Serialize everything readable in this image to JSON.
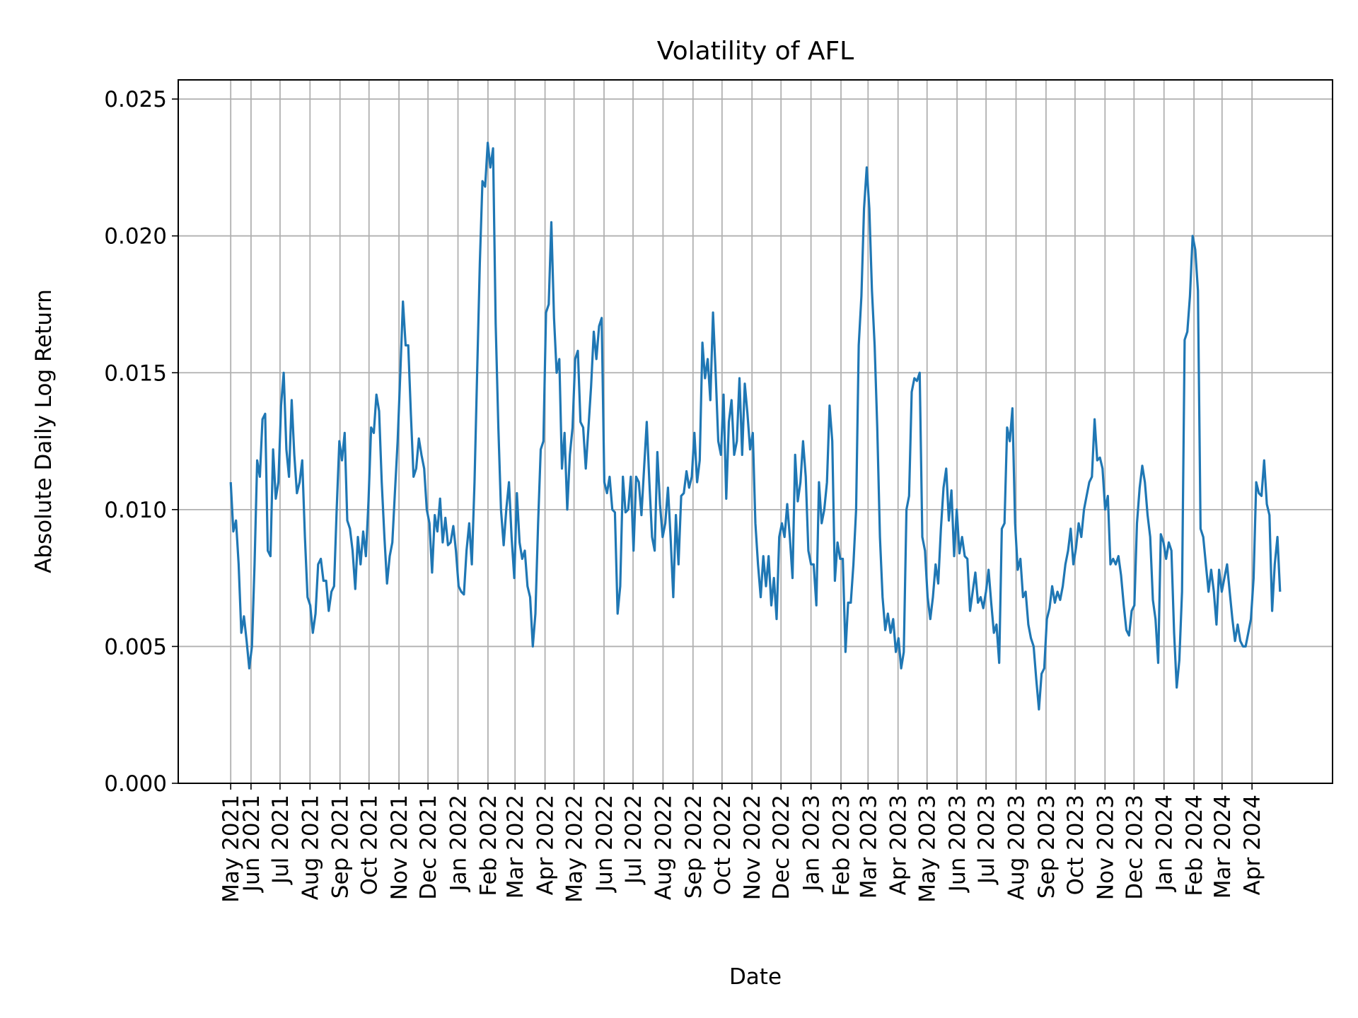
{
  "chart_data": {
    "type": "line",
    "title": "Volatility of AFL",
    "xlabel": "Date",
    "ylabel": "Absolute Daily Log Return",
    "ylim": [
      0,
      0.0257
    ],
    "grid": true,
    "line_color": "#1f77b4",
    "x_range": [
      "2021-05-11",
      "2024-04-30"
    ],
    "yticks": [
      "0.000",
      "0.005",
      "0.010",
      "0.015",
      "0.020",
      "0.025"
    ],
    "xticks": [
      {
        "date": "2021-05-11",
        "label": "May 2021"
      },
      {
        "date": "2021-06-01",
        "label": "Jun 2021"
      },
      {
        "date": "2021-07-01",
        "label": "Jul 2021"
      },
      {
        "date": "2021-08-01",
        "label": "Aug 2021"
      },
      {
        "date": "2021-09-01",
        "label": "Sep 2021"
      },
      {
        "date": "2021-10-01",
        "label": "Oct 2021"
      },
      {
        "date": "2021-11-01",
        "label": "Nov 2021"
      },
      {
        "date": "2021-12-01",
        "label": "Dec 2021"
      },
      {
        "date": "2022-01-01",
        "label": "Jan 2022"
      },
      {
        "date": "2022-02-01",
        "label": "Feb 2022"
      },
      {
        "date": "2022-03-01",
        "label": "Mar 2022"
      },
      {
        "date": "2022-04-01",
        "label": "Apr 2022"
      },
      {
        "date": "2022-05-01",
        "label": "May 2022"
      },
      {
        "date": "2022-06-01",
        "label": "Jun 2022"
      },
      {
        "date": "2022-07-01",
        "label": "Jul 2022"
      },
      {
        "date": "2022-08-01",
        "label": "Aug 2022"
      },
      {
        "date": "2022-09-01",
        "label": "Sep 2022"
      },
      {
        "date": "2022-10-01",
        "label": "Oct 2022"
      },
      {
        "date": "2022-11-01",
        "label": "Nov 2022"
      },
      {
        "date": "2022-12-01",
        "label": "Dec 2022"
      },
      {
        "date": "2023-01-01",
        "label": "Jan 2023"
      },
      {
        "date": "2023-02-01",
        "label": "Feb 2023"
      },
      {
        "date": "2023-03-01",
        "label": "Mar 2023"
      },
      {
        "date": "2023-04-01",
        "label": "Apr 2023"
      },
      {
        "date": "2023-05-01",
        "label": "May 2023"
      },
      {
        "date": "2023-06-01",
        "label": "Jun 2023"
      },
      {
        "date": "2023-07-01",
        "label": "Jul 2023"
      },
      {
        "date": "2023-08-01",
        "label": "Aug 2023"
      },
      {
        "date": "2023-09-01",
        "label": "Sep 2023"
      },
      {
        "date": "2023-10-01",
        "label": "Oct 2023"
      },
      {
        "date": "2023-11-01",
        "label": "Nov 2023"
      },
      {
        "date": "2023-12-01",
        "label": "Dec 2023"
      },
      {
        "date": "2024-01-01",
        "label": "Jan 2024"
      },
      {
        "date": "2024-02-01",
        "label": "Feb 2024"
      },
      {
        "date": "2024-03-01",
        "label": "Mar 2024"
      },
      {
        "date": "2024-04-01",
        "label": "Apr 2024"
      }
    ],
    "values": [
      0.011,
      0.0092,
      0.0096,
      0.008,
      0.0055,
      0.0061,
      0.0052,
      0.0042,
      0.005,
      0.008,
      0.0118,
      0.0112,
      0.0133,
      0.0135,
      0.0085,
      0.0083,
      0.0122,
      0.0104,
      0.011,
      0.0138,
      0.015,
      0.0122,
      0.0112,
      0.014,
      0.012,
      0.0106,
      0.011,
      0.0118,
      0.009,
      0.0068,
      0.0065,
      0.0055,
      0.0062,
      0.008,
      0.0082,
      0.0074,
      0.0074,
      0.0063,
      0.007,
      0.0072,
      0.01,
      0.0125,
      0.0118,
      0.0128,
      0.0096,
      0.0093,
      0.0085,
      0.0071,
      0.009,
      0.008,
      0.0092,
      0.0083,
      0.0103,
      0.013,
      0.0128,
      0.0142,
      0.0136,
      0.011,
      0.009,
      0.0073,
      0.0083,
      0.0088,
      0.0107,
      0.0125,
      0.015,
      0.0176,
      0.016,
      0.016,
      0.0135,
      0.0112,
      0.0115,
      0.0126,
      0.012,
      0.0115,
      0.01,
      0.0095,
      0.0077,
      0.0098,
      0.0092,
      0.0104,
      0.0088,
      0.0097,
      0.0087,
      0.0088,
      0.0094,
      0.0085,
      0.0072,
      0.007,
      0.0069,
      0.0085,
      0.0095,
      0.008,
      0.011,
      0.015,
      0.019,
      0.022,
      0.0218,
      0.0234,
      0.0225,
      0.0232,
      0.0168,
      0.013,
      0.01,
      0.0087,
      0.01,
      0.011,
      0.009,
      0.0075,
      0.0106,
      0.0088,
      0.0082,
      0.0085,
      0.0072,
      0.0068,
      0.005,
      0.0062,
      0.0095,
      0.0122,
      0.0125,
      0.0172,
      0.0175,
      0.0205,
      0.017,
      0.015,
      0.0155,
      0.0115,
      0.0128,
      0.01,
      0.012,
      0.013,
      0.0155,
      0.0158,
      0.0132,
      0.013,
      0.0115,
      0.013,
      0.0145,
      0.0165,
      0.0155,
      0.0167,
      0.017,
      0.011,
      0.0106,
      0.0112,
      0.01,
      0.0099,
      0.0062,
      0.0072,
      0.0112,
      0.0099,
      0.01,
      0.0112,
      0.0085,
      0.0112,
      0.011,
      0.0098,
      0.0115,
      0.0132,
      0.011,
      0.009,
      0.0085,
      0.0121,
      0.0102,
      0.009,
      0.0095,
      0.0108,
      0.009,
      0.0068,
      0.0098,
      0.008,
      0.0105,
      0.0106,
      0.0114,
      0.0108,
      0.0112,
      0.0128,
      0.011,
      0.0118,
      0.0161,
      0.0148,
      0.0155,
      0.014,
      0.0172,
      0.015,
      0.0125,
      0.012,
      0.0142,
      0.0104,
      0.0132,
      0.014,
      0.012,
      0.0125,
      0.0148,
      0.012,
      0.0146,
      0.0135,
      0.0122,
      0.0128,
      0.0095,
      0.008,
      0.0068,
      0.0083,
      0.0072,
      0.0083,
      0.0065,
      0.0075,
      0.006,
      0.009,
      0.0095,
      0.009,
      0.0102,
      0.009,
      0.0075,
      0.012,
      0.0103,
      0.011,
      0.0125,
      0.0112,
      0.0085,
      0.008,
      0.008,
      0.0065,
      0.011,
      0.0095,
      0.01,
      0.011,
      0.0138,
      0.0125,
      0.0074,
      0.0088,
      0.0082,
      0.0082,
      0.0048,
      0.0066,
      0.0066,
      0.008,
      0.01,
      0.016,
      0.0178,
      0.021,
      0.0225,
      0.021,
      0.018,
      0.016,
      0.013,
      0.009,
      0.0068,
      0.0056,
      0.0062,
      0.0055,
      0.006,
      0.0048,
      0.0053,
      0.0042,
      0.0048,
      0.01,
      0.0105,
      0.0143,
      0.0148,
      0.0147,
      0.015,
      0.009,
      0.0085,
      0.0068,
      0.006,
      0.0068,
      0.008,
      0.0073,
      0.0093,
      0.0108,
      0.0115,
      0.0096,
      0.0107,
      0.0083,
      0.01,
      0.0084,
      0.009,
      0.0083,
      0.0082,
      0.0063,
      0.007,
      0.0077,
      0.0066,
      0.0068,
      0.0064,
      0.007,
      0.0078,
      0.0066,
      0.0055,
      0.0058,
      0.0044,
      0.0093,
      0.0095,
      0.013,
      0.0125,
      0.0137,
      0.0095,
      0.0078,
      0.0082,
      0.0068,
      0.007,
      0.0058,
      0.0053,
      0.005,
      0.0038,
      0.0027,
      0.004,
      0.0042,
      0.006,
      0.0064,
      0.0072,
      0.0066,
      0.007,
      0.0067,
      0.0072,
      0.008,
      0.0085,
      0.0093,
      0.008,
      0.0086,
      0.0095,
      0.009,
      0.01,
      0.0105,
      0.011,
      0.0112,
      0.0133,
      0.0118,
      0.0119,
      0.0115,
      0.01,
      0.0105,
      0.008,
      0.0082,
      0.008,
      0.0083,
      0.0076,
      0.0065,
      0.0056,
      0.0054,
      0.0063,
      0.0065,
      0.0095,
      0.0108,
      0.0116,
      0.011,
      0.0098,
      0.009,
      0.0067,
      0.006,
      0.0044,
      0.0091,
      0.0088,
      0.0082,
      0.0088,
      0.0085,
      0.0055,
      0.0035,
      0.0045,
      0.007,
      0.0162,
      0.0165,
      0.0178,
      0.02,
      0.0195,
      0.018,
      0.0093,
      0.009,
      0.008,
      0.007,
      0.0078,
      0.007,
      0.0058,
      0.0078,
      0.007,
      0.0075,
      0.008,
      0.007,
      0.006,
      0.0052,
      0.0058,
      0.0052,
      0.005,
      0.005,
      0.0055,
      0.006,
      0.0075,
      0.011,
      0.0106,
      0.0105,
      0.0118,
      0.0102,
      0.0098,
      0.0063,
      0.008,
      0.009,
      0.007
    ]
  }
}
